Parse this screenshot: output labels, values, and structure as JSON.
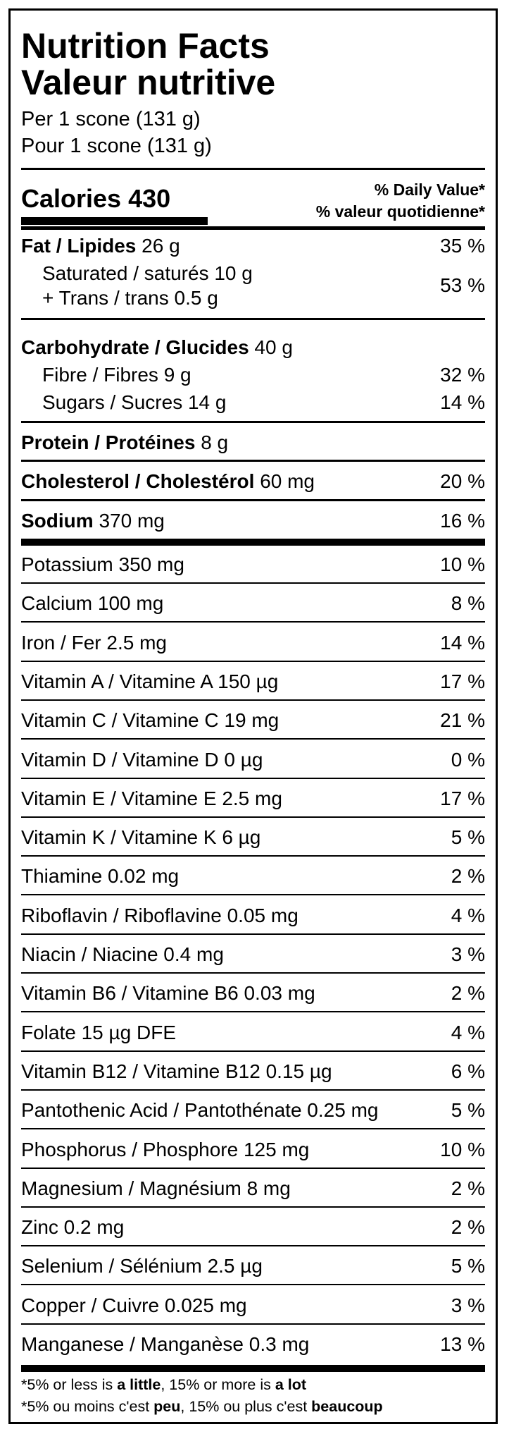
{
  "title_en": "Nutrition Facts",
  "title_fr": "Valeur nutritive",
  "serving_en": "Per 1 scone (131 g)",
  "serving_fr": "Pour 1 scone (131 g)",
  "calories_label": "Calories",
  "calories_value": "430",
  "dv_header_en": "% Daily Value*",
  "dv_header_fr": "% valeur quotidienne*",
  "fat": {
    "label": "Fat / Lipides",
    "amount": "26 g",
    "dv": "35 %"
  },
  "saturated": {
    "line1": "Saturated / saturés 10 g",
    "line2": "+ Trans / trans 0.5 g",
    "dv": "53 %"
  },
  "carbohydrate": {
    "label": "Carbohydrate / Glucides",
    "amount": "40 g"
  },
  "fibre": {
    "label": "Fibre / Fibres 9 g",
    "dv": "32 %"
  },
  "sugars": {
    "label": "Sugars / Sucres 14 g",
    "dv": "14 %"
  },
  "protein": {
    "label": "Protein / Protéines",
    "amount": "8 g"
  },
  "cholesterol": {
    "label": "Cholesterol / Cholestérol",
    "amount": "60 mg",
    "dv": "20 %"
  },
  "sodium": {
    "label": "Sodium",
    "amount": "370 mg",
    "dv": "16 %"
  },
  "micronutrients": [
    {
      "label": "Potassium 350 mg",
      "dv": "10 %"
    },
    {
      "label": "Calcium 100 mg",
      "dv": "8 %"
    },
    {
      "label": "Iron / Fer 2.5 mg",
      "dv": "14 %"
    },
    {
      "label": "Vitamin A / Vitamine A 150 µg",
      "dv": "17 %"
    },
    {
      "label": "Vitamin C / Vitamine C 19 mg",
      "dv": "21 %"
    },
    {
      "label": "Vitamin D / Vitamine D 0 µg",
      "dv": "0 %"
    },
    {
      "label": "Vitamin E / Vitamine E 2.5 mg",
      "dv": "17 %"
    },
    {
      "label": "Vitamin K / Vitamine K 6 µg",
      "dv": "5 %"
    },
    {
      "label": "Thiamine 0.02 mg",
      "dv": "2 %"
    },
    {
      "label": "Riboflavin / Riboflavine 0.05 mg",
      "dv": "4 %"
    },
    {
      "label": "Niacin / Niacine 0.4 mg",
      "dv": "3 %"
    },
    {
      "label": "Vitamin B6 / Vitamine B6 0.03 mg",
      "dv": "2 %"
    },
    {
      "label": "Folate 15 µg DFE",
      "dv": "4 %"
    },
    {
      "label": "Vitamin B12 / Vitamine B12 0.15 µg",
      "dv": "6 %"
    },
    {
      "label": "Pantothenic Acid / Pantothénate 0.25 mg",
      "dv": "5 %"
    },
    {
      "label": "Phosphorus / Phosphore 125 mg",
      "dv": "10 %"
    },
    {
      "label": "Magnesium / Magnésium 8 mg",
      "dv": "2 %"
    },
    {
      "label": "Zinc 0.2 mg",
      "dv": "2 %"
    },
    {
      "label": "Selenium / Sélénium 2.5 µg",
      "dv": "5 %"
    },
    {
      "label": "Copper / Cuivre 0.025 mg",
      "dv": "3 %"
    },
    {
      "label": "Manganese / Manganèse 0.3 mg",
      "dv": "13 %"
    }
  ],
  "footnote_en": {
    "a": "*5% or less is ",
    "b": "a little",
    "c": ", 15% or more is ",
    "d": "a lot"
  },
  "footnote_fr": {
    "a": "*5% ou moins c'est ",
    "b": "peu",
    "c": ", 15% ou plus c'est ",
    "d": "beaucoup"
  }
}
